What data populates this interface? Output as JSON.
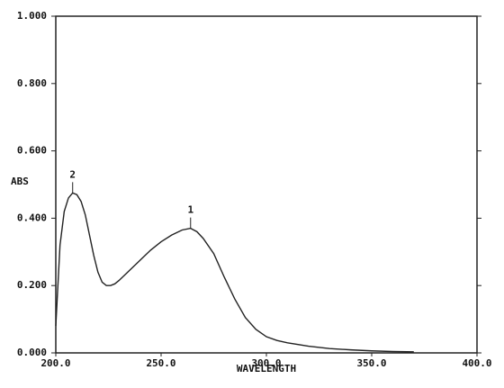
{
  "chart_data": {
    "type": "line",
    "x_label": "WAVELENGTH",
    "y_label": "ABS",
    "x": [
      200,
      201,
      202,
      204,
      206,
      208,
      210,
      212,
      214,
      216,
      218,
      220,
      222,
      224,
      226,
      228,
      230,
      235,
      240,
      245,
      250,
      255,
      260,
      264,
      267,
      270,
      275,
      280,
      285,
      290,
      295,
      300,
      305,
      310,
      320,
      330,
      340,
      350,
      360,
      370
    ],
    "series": [
      {
        "name": "ABS",
        "color": "#222222",
        "values": [
          0.08,
          0.2,
          0.32,
          0.42,
          0.46,
          0.475,
          0.47,
          0.45,
          0.41,
          0.35,
          0.29,
          0.24,
          0.21,
          0.2,
          0.2,
          0.205,
          0.215,
          0.245,
          0.275,
          0.305,
          0.33,
          0.35,
          0.365,
          0.37,
          0.36,
          0.34,
          0.295,
          0.225,
          0.16,
          0.105,
          0.07,
          0.048,
          0.037,
          0.03,
          0.02,
          0.013,
          0.009,
          0.006,
          0.004,
          0.003
        ]
      }
    ],
    "xlim": [
      200,
      400
    ],
    "ylim": [
      0,
      1
    ],
    "xticks": [
      {
        "value": 200,
        "label": "200.0"
      },
      {
        "value": 250,
        "label": "250.0"
      },
      {
        "value": 300,
        "label": "300.0"
      },
      {
        "value": 350,
        "label": "350.0"
      },
      {
        "value": 400,
        "label": "400.0"
      }
    ],
    "yticks": [
      {
        "value": 0,
        "label": "0.000"
      },
      {
        "value": 0.2,
        "label": "0.200"
      },
      {
        "value": 0.4,
        "label": "0.400"
      },
      {
        "value": 0.6,
        "label": "0.600"
      },
      {
        "value": 0.8,
        "label": "0.800"
      },
      {
        "value": 1,
        "label": "1.000"
      }
    ],
    "annotations": [
      {
        "text": "1",
        "x": 264,
        "y": 0.37
      },
      {
        "text": "2",
        "x": 208,
        "y": 0.475
      }
    ]
  }
}
